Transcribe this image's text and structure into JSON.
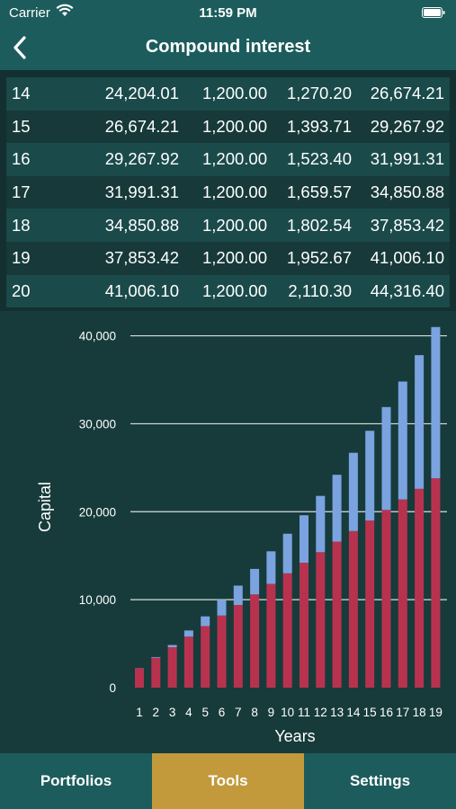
{
  "status": {
    "carrier": "Carrier",
    "time": "11:59 PM"
  },
  "nav": {
    "title": "Compound interest",
    "back_icon": "chevron-left-icon"
  },
  "table": {
    "rows": [
      [
        "14",
        "24,204.01",
        "1,200.00",
        "1,270.20",
        "26,674.21"
      ],
      [
        "15",
        "26,674.21",
        "1,200.00",
        "1,393.71",
        "29,267.92"
      ],
      [
        "16",
        "29,267.92",
        "1,200.00",
        "1,523.40",
        "31,991.31"
      ],
      [
        "17",
        "31,991.31",
        "1,200.00",
        "1,659.57",
        "34,850.88"
      ],
      [
        "18",
        "34,850.88",
        "1,200.00",
        "1,802.54",
        "37,853.42"
      ],
      [
        "19",
        "37,853.42",
        "1,200.00",
        "1,952.67",
        "41,006.10"
      ],
      [
        "20",
        "41,006.10",
        "1,200.00",
        "2,110.30",
        "44,316.40"
      ]
    ]
  },
  "chart_data": {
    "type": "bar",
    "stacked": true,
    "xlabel": "Years",
    "ylabel": "Capital",
    "categories": [
      "1",
      "2",
      "3",
      "4",
      "5",
      "6",
      "7",
      "8",
      "9",
      "10",
      "11",
      "12",
      "13",
      "14",
      "15",
      "16",
      "17",
      "18",
      "19"
    ],
    "yticks": [
      0,
      10000,
      20000,
      30000,
      40000
    ],
    "ytick_labels": [
      "0",
      "10,000",
      "20,000",
      "30,000",
      "40,000"
    ],
    "ylim": [
      0,
      42000
    ],
    "grid": true,
    "series": [
      {
        "color": "#b8324f",
        "values": [
          2200,
          3400,
          4600,
          5800,
          7000,
          8200,
          9400,
          10600,
          11800,
          13000,
          14200,
          15400,
          16600,
          17800,
          19000,
          20200,
          21400,
          22600,
          23800
        ]
      },
      {
        "color": "#7aa3e0",
        "values": [
          20,
          80,
          250,
          700,
          1100,
          1800,
          2200,
          2900,
          3700,
          4500,
          5400,
          6400,
          7600,
          8900,
          10200,
          11700,
          13400,
          15200,
          17200
        ]
      }
    ]
  },
  "tabs": [
    {
      "label": "Portfolios",
      "active": false
    },
    {
      "label": "Tools",
      "active": true
    },
    {
      "label": "Settings",
      "active": false
    }
  ]
}
